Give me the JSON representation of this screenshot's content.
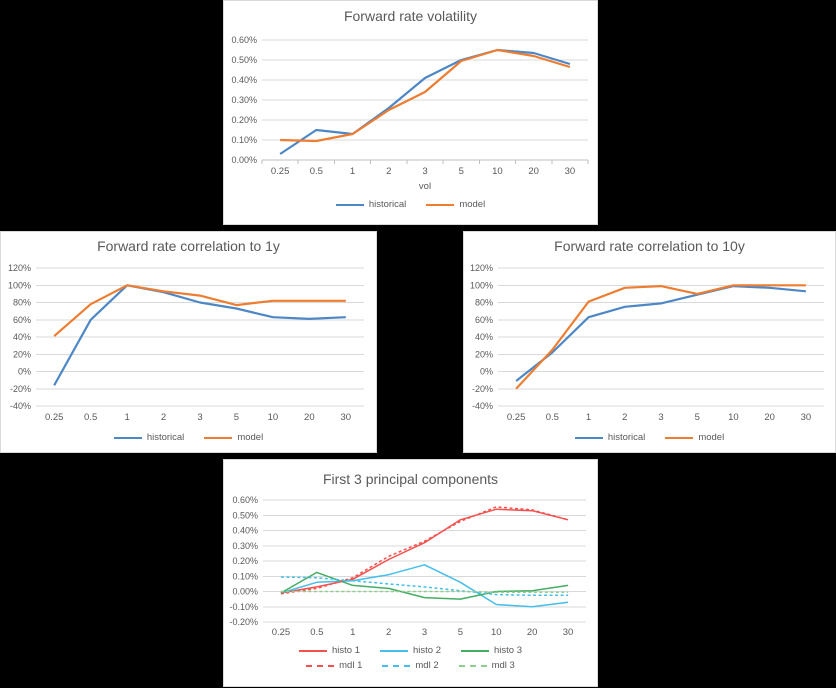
{
  "page": {
    "background": "#000000"
  },
  "panel_style": {
    "background": "#FFFFFF",
    "border": "#D9D9D9"
  },
  "axis_style": {
    "grid_color": "#D9D9D9",
    "axis_line_color": "#BFBFBF",
    "tick_text_color": "#595959",
    "title_text_color": "#595959"
  },
  "chart_data": [
    {
      "type": "line",
      "title": "Forward rate volatility",
      "xlabel": "vol",
      "categories": [
        "0.25",
        "0.5",
        "1",
        "2",
        "3",
        "5",
        "10",
        "20",
        "30"
      ],
      "y_unit": "percent",
      "ylim": [
        0,
        0.6
      ],
      "ytick_step": 0.1,
      "ytick_decimals": 2,
      "ytick_labels": [
        "0.00%",
        "0.10%",
        "0.20%",
        "0.30%",
        "0.40%",
        "0.50%",
        "0.60%"
      ],
      "grid": true,
      "legend_position": "bottom",
      "series": [
        {
          "name": "historical",
          "color": "#4E87C6",
          "dash": false,
          "values": [
            0.03,
            0.15,
            0.13,
            0.26,
            0.41,
            0.5,
            0.55,
            0.535,
            0.48
          ]
        },
        {
          "name": "model",
          "color": "#ED7D31",
          "dash": false,
          "values": [
            0.1,
            0.095,
            0.13,
            0.25,
            0.34,
            0.495,
            0.55,
            0.52,
            0.465
          ]
        }
      ]
    },
    {
      "type": "line",
      "title": "Forward rate correlation to 1y",
      "xlabel": "",
      "categories": [
        "0.25",
        "0.5",
        "1",
        "2",
        "3",
        "5",
        "10",
        "20",
        "30"
      ],
      "y_unit": "percent",
      "ylim": [
        -40,
        120
      ],
      "ytick_step": 20,
      "ytick_decimals": 0,
      "ytick_labels": [
        "-40%",
        "-20%",
        "0%",
        "20%",
        "40%",
        "60%",
        "80%",
        "100%",
        "120%"
      ],
      "grid": true,
      "legend_position": "bottom",
      "series": [
        {
          "name": "historical",
          "color": "#4E87C6",
          "dash": false,
          "values": [
            -16,
            60,
            100,
            92,
            80,
            73,
            63,
            61,
            63
          ]
        },
        {
          "name": "model",
          "color": "#ED7D31",
          "dash": false,
          "values": [
            41,
            78,
            100,
            93,
            88,
            77,
            82,
            82,
            82
          ]
        }
      ]
    },
    {
      "type": "line",
      "title": "Forward rate correlation to 10y",
      "xlabel": "",
      "categories": [
        "0.25",
        "0.5",
        "1",
        "2",
        "3",
        "5",
        "10",
        "20",
        "30"
      ],
      "y_unit": "percent",
      "ylim": [
        -40,
        120
      ],
      "ytick_step": 20,
      "ytick_decimals": 0,
      "ytick_labels": [
        "-40%",
        "-20%",
        "0%",
        "20%",
        "40%",
        "60%",
        "80%",
        "100%",
        "120%"
      ],
      "grid": true,
      "legend_position": "bottom",
      "series": [
        {
          "name": "historical",
          "color": "#4E87C6",
          "dash": false,
          "values": [
            -11,
            22,
            63,
            75,
            79,
            89,
            99,
            97,
            93
          ]
        },
        {
          "name": "model",
          "color": "#ED7D31",
          "dash": false,
          "values": [
            -20,
            25,
            81,
            97,
            99,
            90,
            100,
            100,
            100
          ]
        }
      ]
    },
    {
      "type": "line",
      "title": "First 3 principal components",
      "xlabel": "",
      "categories": [
        "0.25",
        "0.5",
        "1",
        "2",
        "3",
        "5",
        "10",
        "20",
        "30"
      ],
      "y_unit": "percent",
      "ylim": [
        -0.2,
        0.6
      ],
      "ytick_step": 0.1,
      "ytick_decimals": 2,
      "ytick_labels": [
        "-0.20%",
        "-0.10%",
        "0.00%",
        "0.10%",
        "0.20%",
        "0.30%",
        "0.40%",
        "0.50%",
        "0.60%"
      ],
      "grid": true,
      "legend_position": "bottom",
      "series": [
        {
          "name": "histo 1",
          "color": "#F4514E",
          "dash": false,
          "values": [
            -0.01,
            0.03,
            0.08,
            0.21,
            0.32,
            0.47,
            0.54,
            0.53,
            0.47
          ]
        },
        {
          "name": "histo 2",
          "color": "#45BEEB",
          "dash": false,
          "values": [
            -0.01,
            0.06,
            0.07,
            0.11,
            0.175,
            0.06,
            -0.085,
            -0.1,
            -0.07
          ]
        },
        {
          "name": "histo 3",
          "color": "#44AD63",
          "dash": false,
          "values": [
            -0.01,
            0.125,
            0.04,
            0.02,
            -0.04,
            -0.05,
            0.0,
            0.005,
            0.04
          ]
        },
        {
          "name": "mdl 1",
          "color": "#F4514E",
          "dash": true,
          "values": [
            -0.015,
            0.02,
            0.09,
            0.23,
            0.33,
            0.46,
            0.555,
            0.535,
            0.47
          ]
        },
        {
          "name": "mdl 2",
          "color": "#45BEEB",
          "dash": true,
          "values": [
            0.095,
            0.09,
            0.07,
            0.05,
            0.03,
            0.005,
            -0.02,
            -0.025,
            -0.025
          ]
        },
        {
          "name": "mdl 3",
          "color": "#90CE90",
          "dash": true,
          "values": [
            0.0,
            0.0,
            0.0,
            0.0,
            0.0,
            0.0,
            -0.005,
            -0.005,
            -0.005
          ]
        }
      ]
    }
  ]
}
